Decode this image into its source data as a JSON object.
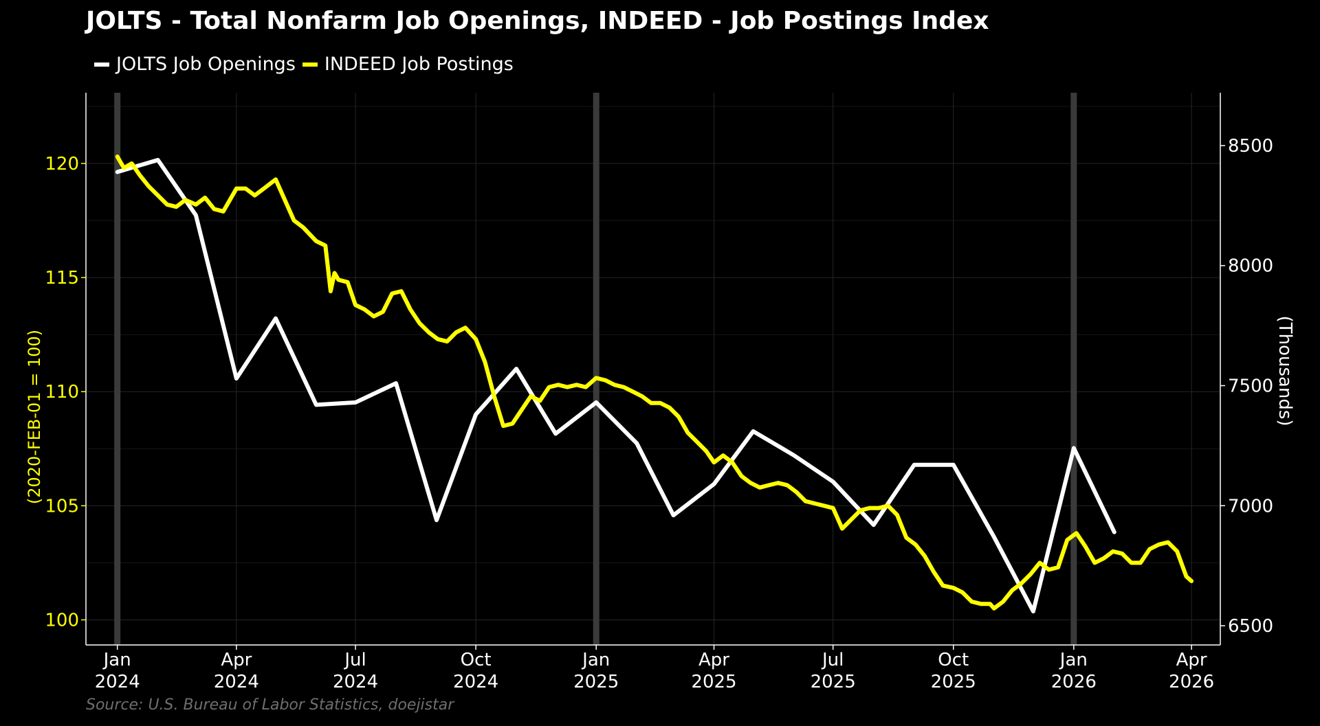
{
  "chart_data": {
    "type": "line",
    "title": "JOLTS - Total Nonfarm Job Openings, INDEED - Job Postings Index",
    "source": "Source: U.S. Bureau of Labor Statistics, doejistar",
    "left_axis": {
      "label": "(2020-FEB-01 = 100)",
      "ticks": [
        "100",
        "105",
        "110",
        "115",
        "120"
      ],
      "range": [
        98.9,
        123.1
      ],
      "color": "#ffff00"
    },
    "right_axis": {
      "label": "(Thousands)",
      "ticks": [
        "6500",
        "7000",
        "7500",
        "8000",
        "8500"
      ],
      "range": [
        6420,
        8720
      ],
      "color": "#ffffff"
    },
    "x_ticks": [
      {
        "date": "2024-01-01",
        "month": "Jan",
        "year": "2024"
      },
      {
        "date": "2024-04-01",
        "month": "Apr",
        "year": "2024"
      },
      {
        "date": "2024-07-01",
        "month": "Jul",
        "year": "2024"
      },
      {
        "date": "2024-10-01",
        "month": "Oct",
        "year": "2024"
      },
      {
        "date": "2025-01-01",
        "month": "Jan",
        "year": "2025"
      },
      {
        "date": "2025-04-01",
        "month": "Apr",
        "year": "2025"
      },
      {
        "date": "2025-07-01",
        "month": "Jul",
        "year": "2025"
      },
      {
        "date": "2025-10-01",
        "month": "Oct",
        "year": "2025"
      },
      {
        "date": "2026-01-01",
        "month": "Jan",
        "year": "2026"
      },
      {
        "date": "2026-04-01",
        "month": "Apr",
        "year": "2026"
      }
    ],
    "x_range": [
      "2023-12-08",
      "2026-04-23"
    ],
    "year_markers": [
      "2024-01-01",
      "2025-01-01",
      "2026-01-01"
    ],
    "grid": true,
    "legend_position": "top-left",
    "series": [
      {
        "name": "JOLTS Job Openings",
        "axis": "right",
        "color": "#ffffff",
        "points": [
          [
            "2024-01-01",
            8390
          ],
          [
            "2024-02-01",
            8440
          ],
          [
            "2024-03-01",
            8210
          ],
          [
            "2024-04-01",
            7530
          ],
          [
            "2024-05-01",
            7780
          ],
          [
            "2024-06-01",
            7420
          ],
          [
            "2024-07-01",
            7430
          ],
          [
            "2024-08-01",
            7510
          ],
          [
            "2024-09-01",
            6940
          ],
          [
            "2024-10-01",
            7380
          ],
          [
            "2024-11-01",
            7570
          ],
          [
            "2024-12-01",
            7300
          ],
          [
            "2025-01-01",
            7430
          ],
          [
            "2025-02-01",
            7260
          ],
          [
            "2025-03-01",
            6960
          ],
          [
            "2025-04-01",
            7090
          ],
          [
            "2025-05-01",
            7310
          ],
          [
            "2025-06-01",
            7210
          ],
          [
            "2025-07-01",
            7100
          ],
          [
            "2025-08-01",
            6920
          ],
          [
            "2025-09-01",
            7170
          ],
          [
            "2025-10-01",
            7170
          ],
          [
            "2025-11-01",
            6870
          ],
          [
            "2025-12-01",
            6560
          ],
          [
            "2026-01-01",
            7240
          ],
          [
            "2026-02-01",
            6890
          ]
        ]
      },
      {
        "name": "INDEED Job Postings",
        "axis": "left",
        "color": "#ffff00",
        "points": [
          [
            "2024-01-01",
            120.3
          ],
          [
            "2024-01-06",
            119.8
          ],
          [
            "2024-01-12",
            120.0
          ],
          [
            "2024-01-18",
            119.5
          ],
          [
            "2024-01-25",
            119.0
          ],
          [
            "2024-02-01",
            118.6
          ],
          [
            "2024-02-08",
            118.2
          ],
          [
            "2024-02-15",
            118.1
          ],
          [
            "2024-02-22",
            118.4
          ],
          [
            "2024-03-01",
            118.2
          ],
          [
            "2024-03-08",
            118.5
          ],
          [
            "2024-03-15",
            118.0
          ],
          [
            "2024-03-22",
            117.9
          ],
          [
            "2024-04-01",
            118.9
          ],
          [
            "2024-04-08",
            118.9
          ],
          [
            "2024-04-15",
            118.6
          ],
          [
            "2024-04-22",
            118.9
          ],
          [
            "2024-05-01",
            119.3
          ],
          [
            "2024-05-08",
            118.4
          ],
          [
            "2024-05-15",
            117.5
          ],
          [
            "2024-05-22",
            117.2
          ],
          [
            "2024-06-01",
            116.6
          ],
          [
            "2024-06-08",
            116.4
          ],
          [
            "2024-06-12",
            114.4
          ],
          [
            "2024-06-15",
            115.2
          ],
          [
            "2024-06-18",
            114.9
          ],
          [
            "2024-06-25",
            114.8
          ],
          [
            "2024-07-01",
            113.8
          ],
          [
            "2024-07-08",
            113.6
          ],
          [
            "2024-07-15",
            113.3
          ],
          [
            "2024-07-22",
            113.5
          ],
          [
            "2024-07-29",
            114.3
          ],
          [
            "2024-08-05",
            114.4
          ],
          [
            "2024-08-12",
            113.6
          ],
          [
            "2024-08-19",
            113.0
          ],
          [
            "2024-08-26",
            112.6
          ],
          [
            "2024-09-02",
            112.3
          ],
          [
            "2024-09-09",
            112.2
          ],
          [
            "2024-09-16",
            112.6
          ],
          [
            "2024-09-23",
            112.8
          ],
          [
            "2024-10-01",
            112.3
          ],
          [
            "2024-10-08",
            111.3
          ],
          [
            "2024-10-15",
            109.8
          ],
          [
            "2024-10-22",
            108.5
          ],
          [
            "2024-10-29",
            108.6
          ],
          [
            "2024-11-05",
            109.2
          ],
          [
            "2024-11-12",
            109.8
          ],
          [
            "2024-11-19",
            109.6
          ],
          [
            "2024-11-26",
            110.2
          ],
          [
            "2024-12-03",
            110.3
          ],
          [
            "2024-12-10",
            110.2
          ],
          [
            "2024-12-17",
            110.3
          ],
          [
            "2024-12-24",
            110.2
          ],
          [
            "2025-01-01",
            110.6
          ],
          [
            "2025-01-08",
            110.5
          ],
          [
            "2025-01-15",
            110.3
          ],
          [
            "2025-01-22",
            110.2
          ],
          [
            "2025-01-29",
            110.0
          ],
          [
            "2025-02-05",
            109.8
          ],
          [
            "2025-02-12",
            109.5
          ],
          [
            "2025-02-19",
            109.5
          ],
          [
            "2025-02-26",
            109.3
          ],
          [
            "2025-03-05",
            108.9
          ],
          [
            "2025-03-12",
            108.2
          ],
          [
            "2025-03-19",
            107.8
          ],
          [
            "2025-03-26",
            107.4
          ],
          [
            "2025-04-01",
            106.9
          ],
          [
            "2025-04-08",
            107.2
          ],
          [
            "2025-04-15",
            106.9
          ],
          [
            "2025-04-22",
            106.3
          ],
          [
            "2025-04-29",
            106.0
          ],
          [
            "2025-05-06",
            105.8
          ],
          [
            "2025-05-13",
            105.9
          ],
          [
            "2025-05-20",
            106.0
          ],
          [
            "2025-05-27",
            105.9
          ],
          [
            "2025-06-03",
            105.6
          ],
          [
            "2025-06-10",
            105.2
          ],
          [
            "2025-06-17",
            105.1
          ],
          [
            "2025-06-24",
            105.0
          ],
          [
            "2025-07-01",
            104.9
          ],
          [
            "2025-07-08",
            104.0
          ],
          [
            "2025-07-15",
            104.4
          ],
          [
            "2025-07-22",
            104.8
          ],
          [
            "2025-07-29",
            104.9
          ],
          [
            "2025-08-05",
            104.9
          ],
          [
            "2025-08-12",
            105.0
          ],
          [
            "2025-08-19",
            104.6
          ],
          [
            "2025-08-26",
            103.6
          ],
          [
            "2025-09-02",
            103.3
          ],
          [
            "2025-09-09",
            102.8
          ],
          [
            "2025-09-16",
            102.1
          ],
          [
            "2025-09-23",
            101.5
          ],
          [
            "2025-10-01",
            101.4
          ],
          [
            "2025-10-08",
            101.2
          ],
          [
            "2025-10-15",
            100.8
          ],
          [
            "2025-10-22",
            100.7
          ],
          [
            "2025-10-29",
            100.7
          ],
          [
            "2025-11-01",
            100.5
          ],
          [
            "2025-11-08",
            100.8
          ],
          [
            "2025-11-15",
            101.3
          ],
          [
            "2025-11-22",
            101.6
          ],
          [
            "2025-11-29",
            102.0
          ],
          [
            "2025-12-06",
            102.5
          ],
          [
            "2025-12-13",
            102.2
          ],
          [
            "2025-12-20",
            102.3
          ],
          [
            "2025-12-27",
            103.5
          ],
          [
            "2026-01-03",
            103.8
          ],
          [
            "2026-01-10",
            103.2
          ],
          [
            "2026-01-17",
            102.5
          ],
          [
            "2026-01-24",
            102.7
          ],
          [
            "2026-01-31",
            103.0
          ],
          [
            "2026-02-07",
            102.9
          ],
          [
            "2026-02-14",
            102.5
          ],
          [
            "2026-02-21",
            102.5
          ],
          [
            "2026-02-28",
            103.1
          ],
          [
            "2026-03-07",
            103.3
          ],
          [
            "2026-03-14",
            103.4
          ],
          [
            "2026-03-21",
            103.0
          ],
          [
            "2026-03-28",
            101.9
          ],
          [
            "2026-04-01",
            101.7
          ]
        ]
      }
    ]
  }
}
